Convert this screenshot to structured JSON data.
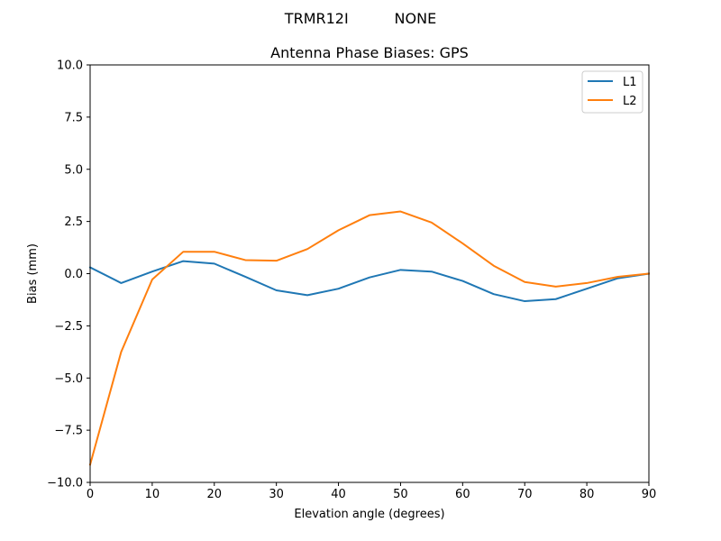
{
  "chart_data": {
    "type": "line",
    "suptitle": "TRMR12I          NONE",
    "title": "Antenna Phase Biases: GPS",
    "xlabel": "Elevation angle (degrees)",
    "ylabel": "Bias (mm)",
    "xlim": [
      0,
      90
    ],
    "ylim": [
      -10.0,
      10.0
    ],
    "xticks": [
      0,
      10,
      20,
      30,
      40,
      50,
      60,
      70,
      80,
      90
    ],
    "xtick_labels": [
      "0",
      "10",
      "20",
      "30",
      "40",
      "50",
      "60",
      "70",
      "80",
      "90"
    ],
    "yticks": [
      -10.0,
      -7.5,
      -5.0,
      -2.5,
      0.0,
      2.5,
      5.0,
      7.5,
      10.0
    ],
    "ytick_labels": [
      "−10.0",
      "−7.5",
      "−5.0",
      "−2.5",
      "0.0",
      "2.5",
      "5.0",
      "7.5",
      "10.0"
    ],
    "grid": false,
    "legend_position": "top-right",
    "x": [
      0,
      5,
      10,
      15,
      20,
      25,
      30,
      35,
      40,
      45,
      50,
      55,
      60,
      65,
      70,
      75,
      80,
      85,
      90
    ],
    "series": [
      {
        "name": "L1",
        "color": "#1f77b4",
        "values": [
          0.3,
          -0.45,
          0.1,
          0.6,
          0.48,
          -0.15,
          -0.8,
          -1.03,
          -0.72,
          -0.18,
          0.18,
          0.1,
          -0.35,
          -0.98,
          -1.32,
          -1.22,
          -0.72,
          -0.22,
          0.0
        ]
      },
      {
        "name": "L2",
        "color": "#ff7f0e",
        "values": [
          -9.15,
          -3.75,
          -0.28,
          1.05,
          1.05,
          0.65,
          0.62,
          1.18,
          2.08,
          2.8,
          2.98,
          2.45,
          1.45,
          0.38,
          -0.4,
          -0.62,
          -0.45,
          -0.15,
          0.0
        ]
      }
    ]
  }
}
